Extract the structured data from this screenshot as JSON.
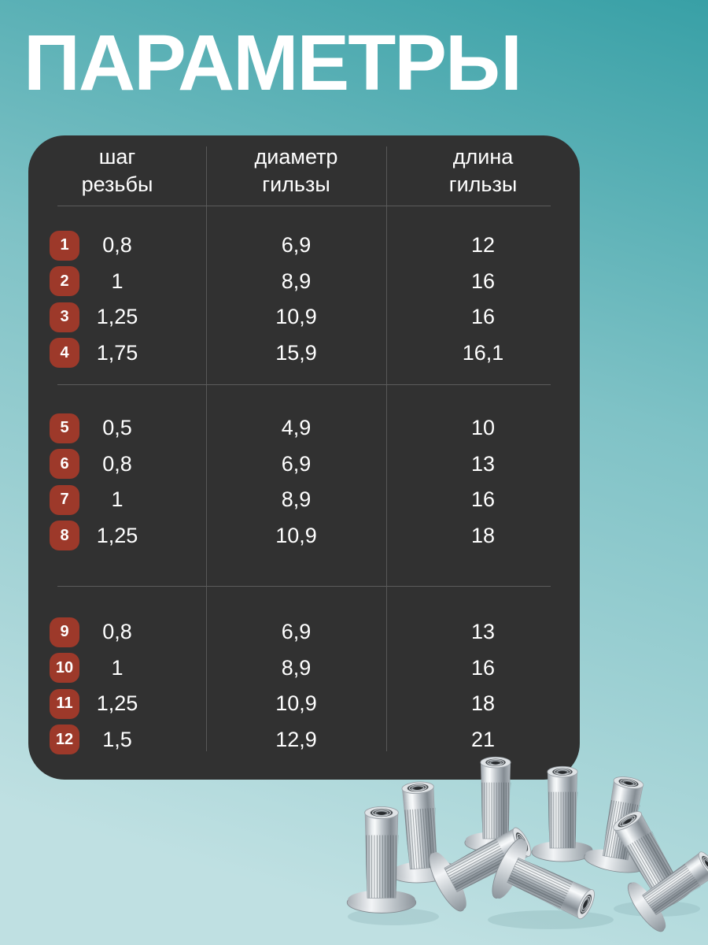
{
  "page": {
    "title": "ПАРАМЕТРЫ"
  },
  "table": {
    "headers": [
      {
        "line1": "шаг",
        "line2": "резьбы"
      },
      {
        "line1": "диаметр",
        "line2": "гильзы"
      },
      {
        "line1": "длина",
        "line2": "гильзы"
      }
    ],
    "groups": [
      {
        "rows": [
          {
            "num": "1",
            "pitch": "0,8",
            "diameter": "6,9",
            "length": "12"
          },
          {
            "num": "2",
            "pitch": "1",
            "diameter": "8,9",
            "length": "16"
          },
          {
            "num": "3",
            "pitch": "1,25",
            "diameter": "10,9",
            "length": "16"
          },
          {
            "num": "4",
            "pitch": "1,75",
            "diameter": "15,9",
            "length": "16,1"
          }
        ]
      },
      {
        "rows": [
          {
            "num": "5",
            "pitch": "0,5",
            "diameter": "4,9",
            "length": "10"
          },
          {
            "num": "6",
            "pitch": "0,8",
            "diameter": "6,9",
            "length": "13"
          },
          {
            "num": "7",
            "pitch": "1",
            "diameter": "8,9",
            "length": "16"
          },
          {
            "num": "8",
            "pitch": "1,25",
            "diameter": "10,9",
            "length": "18"
          }
        ]
      },
      {
        "rows": [
          {
            "num": "9",
            "pitch": "0,8",
            "diameter": "6,9",
            "length": "13"
          },
          {
            "num": "10",
            "pitch": "1",
            "diameter": "8,9",
            "length": "16"
          },
          {
            "num": "11",
            "pitch": "1,25",
            "diameter": "10,9",
            "length": "18"
          },
          {
            "num": "12",
            "pitch": "1,5",
            "diameter": "12,9",
            "length": "21"
          }
        ]
      }
    ]
  },
  "photo": {
    "name": "rivet-nuts"
  },
  "colors": {
    "background_top": "#38a0a6",
    "background_mid": "#7fc2c6",
    "background_bottom": "#bfe0e2",
    "panel": "#313131",
    "badge": "#9d392a",
    "text": "#ffffff"
  }
}
